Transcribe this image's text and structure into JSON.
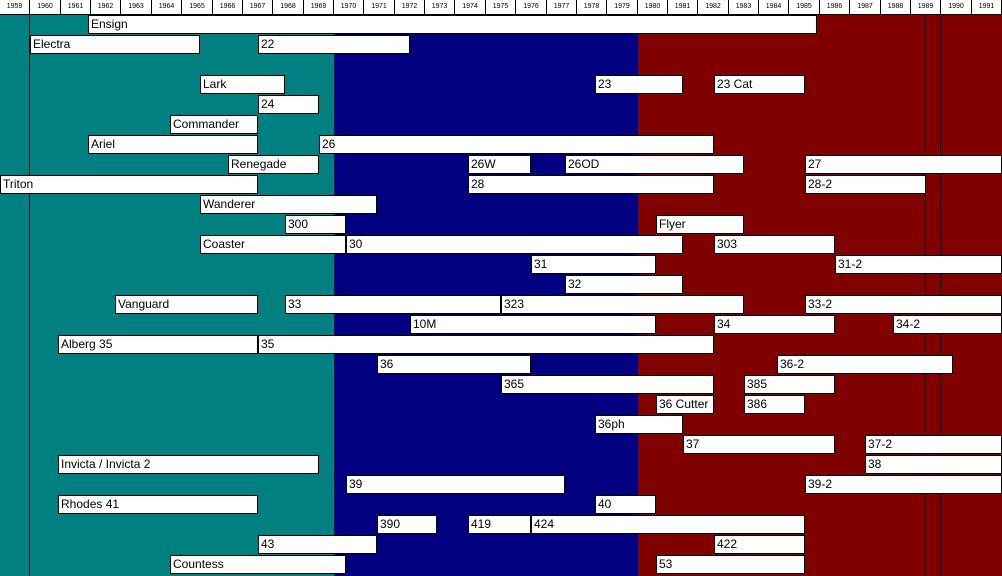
{
  "chart_data": {
    "type": "timeline",
    "years": [
      "1959",
      "1960",
      "1961",
      "1962",
      "1963",
      "1964",
      "1965",
      "1966",
      "1967",
      "1968",
      "1969",
      "1970",
      "1971",
      "1972",
      "1973",
      "1974",
      "1975",
      "1976",
      "1977",
      "1978",
      "1979",
      "1980",
      "1981",
      "1982",
      "1983",
      "1984",
      "1985",
      "1986",
      "1987",
      "1988",
      "1989",
      "1990",
      "1991"
    ],
    "eras": [
      {
        "start": 1959,
        "end": 1970,
        "color": "#008080"
      },
      {
        "start": 1970,
        "end": 1980,
        "color": "#000080"
      },
      {
        "start": 1980,
        "end": 1992,
        "color": "#800000"
      }
    ],
    "rows": [
      [
        {
          "label": "Ensign",
          "start": 1961.9,
          "end": 1985.9
        }
      ],
      [
        {
          "label": "Electra",
          "start": 1960,
          "end": 1965.6
        },
        {
          "label": "22",
          "start": 1967.5,
          "end": 1972.5
        }
      ],
      [],
      [
        {
          "label": "Lark",
          "start": 1965.6,
          "end": 1968.4
        },
        {
          "label": "23",
          "start": 1978.6,
          "end": 1981.5
        },
        {
          "label": "23 Cat",
          "start": 1982.5,
          "end": 1985.5
        }
      ],
      [
        {
          "label": "24",
          "start": 1967.5,
          "end": 1969.5
        }
      ],
      [
        {
          "label": "Commander",
          "start": 1964.6,
          "end": 1967.5
        }
      ],
      [
        {
          "label": "Ariel",
          "start": 1961.9,
          "end": 1967.5
        },
        {
          "label": "26",
          "start": 1969.5,
          "end": 1982.5
        }
      ],
      [
        {
          "label": "Renegade",
          "start": 1966.5,
          "end": 1969.5
        },
        {
          "label": "26W",
          "start": 1974.4,
          "end": 1976.5
        },
        {
          "label": "26OD",
          "start": 1977.6,
          "end": 1983.5
        },
        {
          "label": "27",
          "start": 1985.5,
          "end": 1992
        }
      ],
      [
        {
          "label": "Triton",
          "start": 1959,
          "end": 1967.5
        },
        {
          "label": "28",
          "start": 1974.4,
          "end": 1982.5
        },
        {
          "label": "28-2",
          "start": 1985.5,
          "end": 1989.5
        }
      ],
      [
        {
          "label": "Wanderer",
          "start": 1965.6,
          "end": 1971.4
        }
      ],
      [
        {
          "label": "300",
          "start": 1968.4,
          "end": 1970.4
        },
        {
          "label": "Flyer",
          "start": 1980.6,
          "end": 1983.5
        }
      ],
      [
        {
          "label": "Coaster",
          "start": 1965.6,
          "end": 1970.4
        },
        {
          "label": "30",
          "start": 1970.4,
          "end": 1981.5
        },
        {
          "label": "303",
          "start": 1982.5,
          "end": 1986.5
        }
      ],
      [
        {
          "label": "31",
          "start": 1976.5,
          "end": 1980.6
        },
        {
          "label": "31-2",
          "start": 1986.5,
          "end": 1992
        }
      ],
      [
        {
          "label": "32",
          "start": 1977.6,
          "end": 1981.5
        }
      ],
      [
        {
          "label": "Vanguard",
          "start": 1962.8,
          "end": 1967.5
        },
        {
          "label": "33",
          "start": 1968.4,
          "end": 1975.5
        },
        {
          "label": "323",
          "start": 1975.5,
          "end": 1983.5
        },
        {
          "label": "33-2",
          "start": 1985.5,
          "end": 1992
        }
      ],
      [
        {
          "label": "10M",
          "start": 1972.5,
          "end": 1980.6
        },
        {
          "label": "34",
          "start": 1982.5,
          "end": 1986.5
        },
        {
          "label": "34-2",
          "start": 1988.4,
          "end": 1992
        }
      ],
      [
        {
          "label": "Alberg 35",
          "start": 1960.9,
          "end": 1967.5
        },
        {
          "label": "35",
          "start": 1967.5,
          "end": 1982.5
        }
      ],
      [
        {
          "label": "36",
          "start": 1971.4,
          "end": 1976.5
        },
        {
          "label": "36-2",
          "start": 1984.6,
          "end": 1990.4
        }
      ],
      [
        {
          "label": "365",
          "start": 1975.5,
          "end": 1982.5
        },
        {
          "label": "385",
          "start": 1983.5,
          "end": 1986.5
        }
      ],
      [
        {
          "label": "36 Cutter",
          "start": 1980.6,
          "end": 1982.5
        },
        {
          "label": "386",
          "start": 1983.5,
          "end": 1985.5
        }
      ],
      [
        {
          "label": "36ph",
          "start": 1978.6,
          "end": 1981.5
        }
      ],
      [
        {
          "label": "37",
          "start": 1981.5,
          "end": 1986.5
        },
        {
          "label": "37-2",
          "start": 1987.5,
          "end": 1992
        }
      ],
      [
        {
          "label": "Invicta / Invicta 2",
          "start": 1960.9,
          "end": 1969.5
        },
        {
          "label": "38",
          "start": 1987.5,
          "end": 1992
        }
      ],
      [
        {
          "label": "39",
          "start": 1970.4,
          "end": 1977.6
        },
        {
          "label": "39-2",
          "start": 1985.5,
          "end": 1992
        }
      ],
      [
        {
          "label": "Rhodes 41",
          "start": 1960.9,
          "end": 1967.5
        },
        {
          "label": "40",
          "start": 1978.6,
          "end": 1980.6
        }
      ],
      [
        {
          "label": "390",
          "start": 1971.4,
          "end": 1973.4
        },
        {
          "label": "419",
          "start": 1974.4,
          "end": 1976.5
        },
        {
          "label": "424",
          "start": 1976.5,
          "end": 1985.5
        }
      ],
      [
        {
          "label": "43",
          "start": 1967.5,
          "end": 1971.4
        },
        {
          "label": "422",
          "start": 1982.5,
          "end": 1985.5
        }
      ],
      [
        {
          "label": "Countess",
          "start": 1964.6,
          "end": 1970.4
        },
        {
          "label": "53",
          "start": 1980.6,
          "end": 1985.5
        }
      ]
    ]
  }
}
